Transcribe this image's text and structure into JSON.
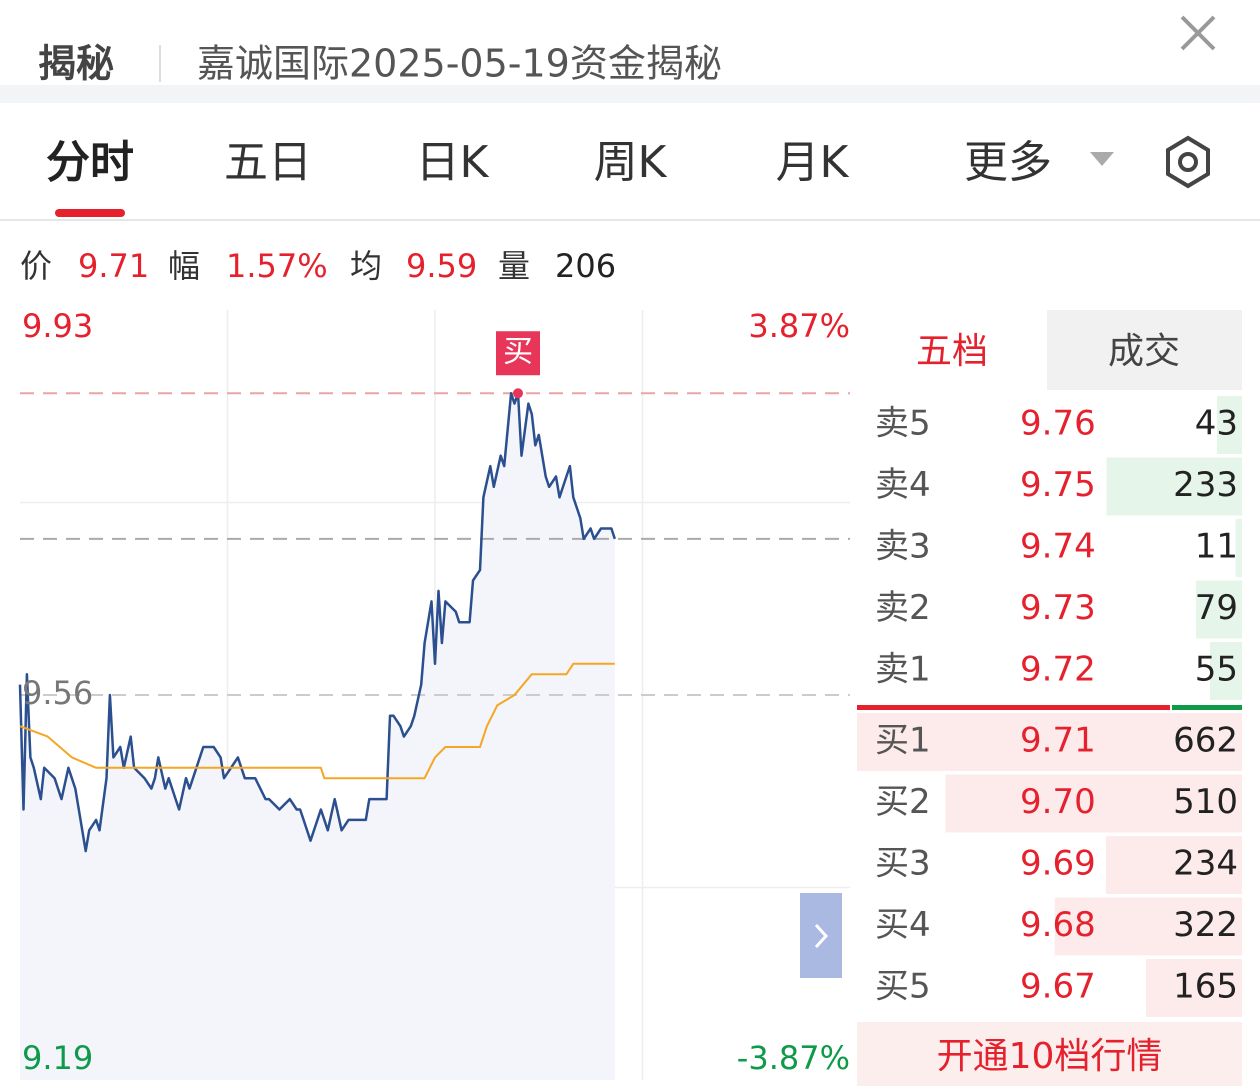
{
  "header": {
    "tab": "揭秘",
    "title": "嘉诚国际2025-05-19资金揭秘"
  },
  "tabs": [
    "分时",
    "五日",
    "日K",
    "周K",
    "月K",
    "更多"
  ],
  "quote": [
    {
      "label": "价",
      "value": "9.71",
      "color": "#e5212e"
    },
    {
      "label": "幅",
      "value": "1.57%",
      "color": "#e5212e"
    },
    {
      "label": "均",
      "value": "9.59",
      "color": "#e5212e"
    },
    {
      "label": "量",
      "value": "206",
      "color": "#222222"
    }
  ],
  "chart_data": {
    "type": "line",
    "xlim": [
      0,
      240
    ],
    "ylim": [
      9.19,
      9.93
    ],
    "yticks": [
      9.93,
      9.56,
      9.19
    ],
    "y2lim": [
      -3.87,
      3.87
    ],
    "y2ticks": [
      {
        "value": 3.87,
        "label": "3.87%"
      },
      {
        "value": -3.87,
        "label": "-3.87%"
      }
    ],
    "grid": true,
    "reference_lines": [
      {
        "value": 9.85,
        "color": "#eaa4a4"
      },
      {
        "value": 9.71,
        "color": "#aaaaaa"
      },
      {
        "value": 9.56,
        "color": "#cccccc"
      }
    ],
    "series": [
      {
        "color": "#2b4f8f",
        "fill": "#f3f5fb",
        "x": [
          0,
          1,
          2,
          3,
          4,
          6,
          7,
          10,
          12,
          14,
          16,
          17,
          19,
          20,
          22,
          23,
          25,
          26,
          27,
          29,
          30,
          32,
          33,
          36,
          38,
          39,
          40,
          42,
          43,
          45,
          46,
          48,
          49,
          51,
          53,
          56,
          58,
          59,
          61,
          63,
          65,
          68,
          71,
          72,
          75,
          78,
          80,
          81,
          82,
          84,
          87,
          89,
          91,
          93,
          95,
          100,
          101,
          106,
          107,
          108,
          110,
          111,
          113,
          114,
          116,
          117,
          119,
          120,
          121,
          122,
          123,
          126,
          127,
          130,
          131,
          133,
          134,
          136,
          137,
          139,
          140,
          142,
          143,
          144,
          145,
          147,
          148,
          149,
          150,
          152,
          153,
          155,
          156,
          158,
          159,
          160,
          162,
          163,
          165,
          166,
          168,
          171,
          172
        ],
        "values": [
          9.57,
          9.45,
          9.58,
          9.5,
          9.49,
          9.46,
          9.49,
          9.48,
          9.46,
          9.49,
          9.47,
          9.45,
          9.41,
          9.43,
          9.44,
          9.43,
          9.48,
          9.56,
          9.5,
          9.51,
          9.49,
          9.52,
          9.49,
          9.48,
          9.47,
          9.48,
          9.5,
          9.47,
          9.48,
          9.46,
          9.45,
          9.48,
          9.47,
          9.49,
          9.51,
          9.51,
          9.5,
          9.48,
          9.49,
          9.5,
          9.48,
          9.48,
          9.46,
          9.46,
          9.45,
          9.46,
          9.45,
          9.45,
          9.44,
          9.42,
          9.45,
          9.43,
          9.46,
          9.43,
          9.44,
          9.44,
          9.46,
          9.46,
          9.54,
          9.54,
          9.53,
          9.52,
          9.53,
          9.54,
          9.57,
          9.61,
          9.65,
          9.59,
          9.66,
          9.61,
          9.65,
          9.64,
          9.63,
          9.63,
          9.67,
          9.68,
          9.75,
          9.78,
          9.76,
          9.79,
          9.78,
          9.85,
          9.84,
          9.85,
          9.79,
          9.84,
          9.83,
          9.8,
          9.81,
          9.77,
          9.76,
          9.77,
          9.75,
          9.77,
          9.78,
          9.75,
          9.73,
          9.71,
          9.72,
          9.71,
          9.72,
          9.72,
          9.71
        ]
      },
      {
        "color": "#f5a623",
        "x": [
          0,
          8,
          15,
          22,
          87,
          88,
          117,
          120,
          123,
          133,
          135,
          138,
          143,
          148,
          158,
          160,
          172
        ],
        "values": [
          9.53,
          9.52,
          9.5,
          9.49,
          9.49,
          9.48,
          9.48,
          9.5,
          9.51,
          9.51,
          9.53,
          9.55,
          9.56,
          9.58,
          9.58,
          9.59,
          9.59
        ]
      }
    ],
    "annotation": {
      "text": "买",
      "x": 144,
      "y": 9.85,
      "color": "#e8355a"
    }
  },
  "order_book": {
    "tabs": [
      "五档",
      "成交"
    ],
    "asks": [
      {
        "label": "卖5",
        "price": "9.76",
        "volume": 43
      },
      {
        "label": "卖4",
        "price": "9.75",
        "volume": 233
      },
      {
        "label": "卖3",
        "price": "9.74",
        "volume": 11
      },
      {
        "label": "卖2",
        "price": "9.73",
        "volume": 79
      },
      {
        "label": "卖1",
        "price": "9.72",
        "volume": 55
      }
    ],
    "bids": [
      {
        "label": "买1",
        "price": "9.71",
        "volume": 662
      },
      {
        "label": "买2",
        "price": "9.70",
        "volume": 510
      },
      {
        "label": "买3",
        "price": "9.69",
        "volume": 234
      },
      {
        "label": "买4",
        "price": "9.68",
        "volume": 322
      },
      {
        "label": "买5",
        "price": "9.67",
        "volume": 165
      }
    ],
    "button": "开通10档行情"
  }
}
